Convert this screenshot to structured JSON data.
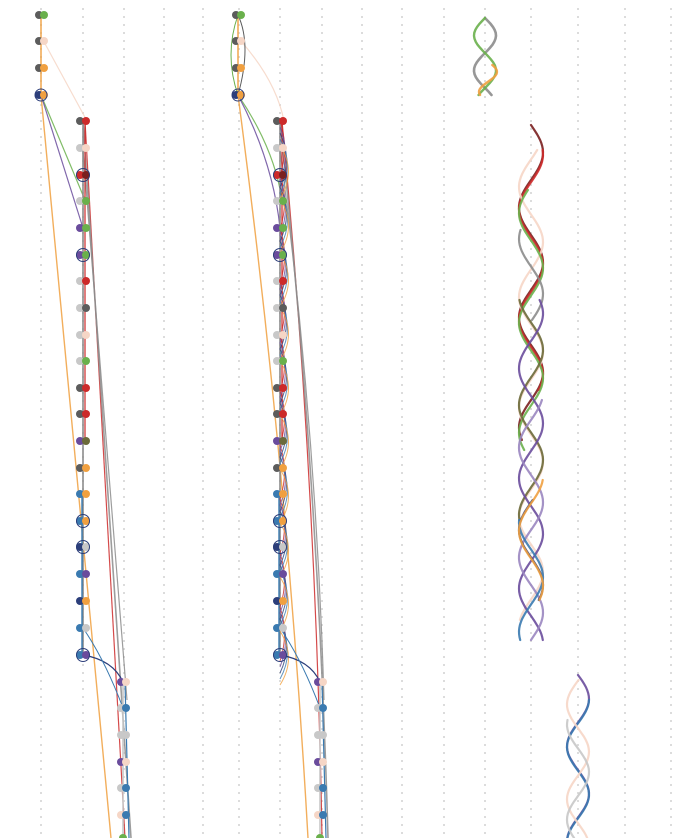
{
  "palette": {
    "gray_dark": "#5c5c5c",
    "gray_mid": "#8c8c8c",
    "gray_light": "#c8c8c8",
    "green": "#6ab04c",
    "orange": "#f0a040",
    "red": "#cc2a2a",
    "dark_red": "#7a1f1f",
    "purple": "#6a4c9c",
    "navy": "#2c3e7a",
    "blue": "#3a7ab0",
    "peach": "#f6d6c6",
    "olive": "#6b6a3a",
    "lavender": "#9a86c0",
    "dotted_grid": "#dcdcdc"
  },
  "diagram": {
    "description_kind": "node-link trajectory panels",
    "panels": [
      {
        "id": "left-graph"
      },
      {
        "id": "middle-graph"
      },
      {
        "id": "right-top-strands"
      },
      {
        "id": "right-middle-strands"
      },
      {
        "id": "right-bottom-strands"
      }
    ]
  }
}
